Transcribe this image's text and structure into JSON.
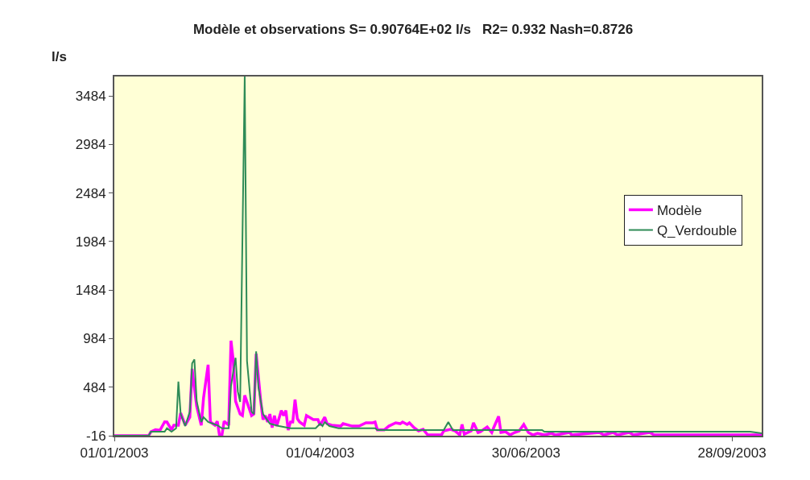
{
  "chart_data": {
    "type": "line",
    "title": "Modèle et observations S= 0.90764E+02 l/s   R2= 0.932 Nash=0.8726",
    "ylabel": "l/s",
    "xlim": [
      "2003-01-01",
      "2003-10-11"
    ],
    "xticks": [
      {
        "value": "2003-01-01",
        "label": "01/01/2003"
      },
      {
        "value": "2003-04-01",
        "label": "01/04/2003"
      },
      {
        "value": "2003-06-30",
        "label": "30/06/2003"
      },
      {
        "value": "2003-09-28",
        "label": "28/09/2003"
      }
    ],
    "ylim": [
      -16,
      3684
    ],
    "yticks": [
      -16,
      484,
      984,
      1484,
      1984,
      2484,
      2984,
      3484
    ],
    "grid": false,
    "legend": "right",
    "marker": "none",
    "line_style": "solid",
    "series": [
      {
        "name": "Modèle",
        "color": "#ff00ff",
        "x": [
          "2003-01-01",
          "2003-01-16",
          "2003-01-17",
          "2003-01-19",
          "2003-01-21",
          "2003-01-23",
          "2003-01-24",
          "2003-01-26",
          "2003-01-27",
          "2003-01-29",
          "2003-01-30",
          "2003-02-01",
          "2003-02-03",
          "2003-02-04",
          "2003-02-06",
          "2003-02-08",
          "2003-02-09",
          "2003-02-11",
          "2003-02-12",
          "2003-02-14",
          "2003-02-15",
          "2003-02-16",
          "2003-02-17",
          "2003-02-18",
          "2003-02-20",
          "2003-02-21",
          "2003-02-22",
          "2003-02-23",
          "2003-02-25",
          "2003-02-26",
          "2003-02-27",
          "2003-03-02",
          "2003-03-03",
          "2003-03-04",
          "2003-03-06",
          "2003-03-07",
          "2003-03-08",
          "2003-03-09",
          "2003-03-10",
          "2003-03-11",
          "2003-03-12",
          "2003-03-13",
          "2003-03-15",
          "2003-03-16",
          "2003-03-17",
          "2003-03-18",
          "2003-03-19",
          "2003-03-20",
          "2003-03-21",
          "2003-03-22",
          "2003-03-23",
          "2003-03-25",
          "2003-03-26",
          "2003-03-29",
          "2003-03-31",
          "2003-04-01",
          "2003-04-03",
          "2003-04-04",
          "2003-04-06",
          "2003-04-10",
          "2003-04-11",
          "2003-04-15",
          "2003-04-18",
          "2003-04-21",
          "2003-04-24",
          "2003-04-25",
          "2003-04-26",
          "2003-04-29",
          "2003-05-01",
          "2003-05-04",
          "2003-05-06",
          "2003-05-07",
          "2003-05-09",
          "2003-05-10",
          "2003-05-12",
          "2003-05-14",
          "2003-05-16",
          "2003-05-18",
          "2003-05-24",
          "2003-05-25",
          "2003-05-28",
          "2003-05-30",
          "2003-06-01",
          "2003-06-02",
          "2003-06-03",
          "2003-06-06",
          "2003-06-07",
          "2003-06-09",
          "2003-06-10",
          "2003-06-13",
          "2003-06-15",
          "2003-06-16",
          "2003-06-18",
          "2003-06-19",
          "2003-06-21",
          "2003-06-23",
          "2003-06-25",
          "2003-06-27",
          "2003-06-29",
          "2003-07-01",
          "2003-07-03",
          "2003-07-05",
          "2003-07-08",
          "2003-07-11",
          "2003-07-13",
          "2003-07-19",
          "2003-07-20",
          "2003-08-01",
          "2003-08-03",
          "2003-08-07",
          "2003-08-09",
          "2003-08-14",
          "2003-08-16",
          "2003-08-23",
          "2003-08-25",
          "2003-10-11"
        ],
        "values": [
          -16,
          -16,
          25,
          45,
          41,
          127,
          125,
          45,
          92,
          92,
          218,
          92,
          175,
          673,
          287,
          92,
          373,
          715,
          125,
          92,
          133,
          -16,
          -16,
          133,
          92,
          963,
          754,
          340,
          207,
          191,
          400,
          191,
          207,
          828,
          340,
          150,
          191,
          125,
          207,
          67,
          191,
          83,
          243,
          191,
          243,
          41,
          125,
          125,
          356,
          160,
          125,
          92,
          191,
          150,
          150,
          92,
          175,
          108,
          92,
          83,
          108,
          83,
          83,
          117,
          117,
          125,
          44,
          44,
          83,
          117,
          108,
          125,
          100,
          117,
          67,
          33,
          50,
          -8,
          -8,
          33,
          50,
          33,
          -8,
          100,
          0,
          33,
          117,
          17,
          25,
          75,
          17,
          75,
          183,
          17,
          25,
          -8,
          17,
          33,
          100,
          17,
          -8,
          8,
          -8,
          8,
          -8,
          17,
          -8,
          17,
          -8,
          17,
          -8,
          17,
          -8,
          17,
          -8,
          -8
        ]
      },
      {
        "name": "Q_Verdouble",
        "color": "#2e8b57",
        "x": [
          "2003-01-01",
          "2003-01-16",
          "2003-01-17",
          "2003-01-23",
          "2003-01-24",
          "2003-01-26",
          "2003-01-28",
          "2003-01-29",
          "2003-01-30",
          "2003-02-01",
          "2003-02-03",
          "2003-02-04",
          "2003-02-05",
          "2003-02-06",
          "2003-02-08",
          "2003-02-09",
          "2003-02-11",
          "2003-02-15",
          "2003-02-17",
          "2003-02-20",
          "2003-02-21",
          "2003-02-23",
          "2003-02-24",
          "2003-02-25",
          "2003-02-27",
          "2003-02-28",
          "2003-03-02",
          "2003-03-03",
          "2003-03-04",
          "2003-03-05",
          "2003-03-07",
          "2003-03-10",
          "2003-03-14",
          "2003-03-19",
          "2003-03-30",
          "2003-04-01",
          "2003-04-02",
          "2003-04-03",
          "2003-04-05",
          "2003-04-09",
          "2003-04-25",
          "2003-04-26",
          "2003-05-25",
          "2003-05-27",
          "2003-05-29",
          "2003-07-07",
          "2003-07-08",
          "2003-10-06",
          "2003-10-11"
        ],
        "values": [
          -16,
          -16,
          25,
          25,
          61,
          25,
          61,
          541,
          207,
          83,
          232,
          729,
          770,
          340,
          125,
          175,
          125,
          92,
          61,
          61,
          497,
          787,
          439,
          332,
          3684,
          754,
          232,
          207,
          853,
          481,
          207,
          108,
          83,
          61,
          61,
          108,
          83,
          125,
          83,
          61,
          61,
          42,
          42,
          125,
          42,
          42,
          25,
          25,
          9
        ]
      }
    ]
  }
}
